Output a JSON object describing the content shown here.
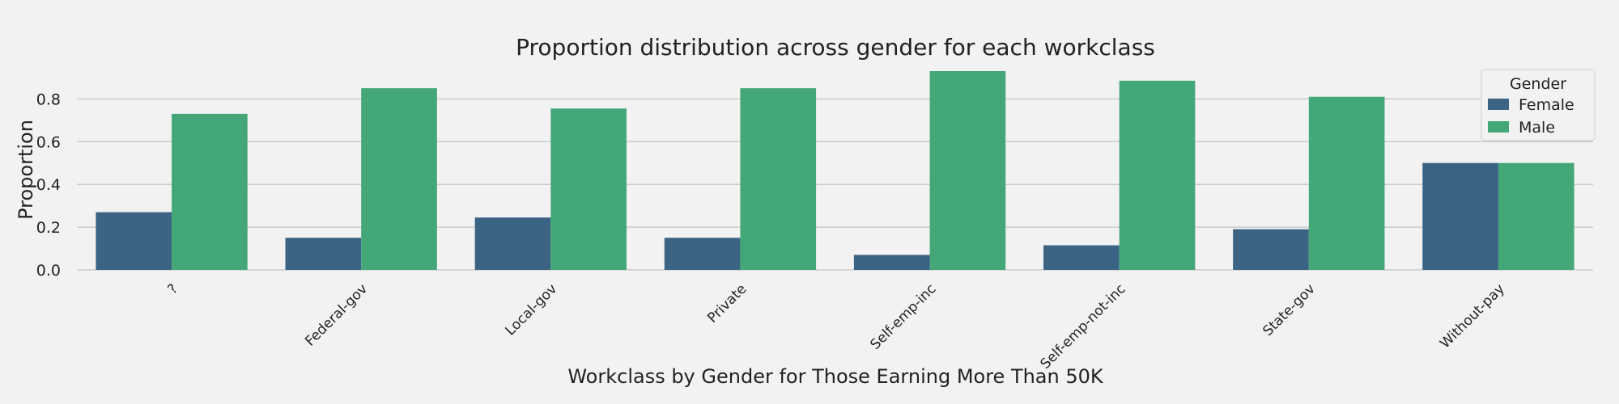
{
  "chart_data": {
    "type": "bar",
    "title": "Proportion distribution across gender for each workclass",
    "xlabel": "Workclass by Gender for Those Earning More Than 50K",
    "ylabel": "Proportion",
    "categories": [
      "?",
      "Federal-gov",
      "Local-gov",
      "Private",
      "Self-emp-inc",
      "Self-emp-not-inc",
      "State-gov",
      "Without-pay"
    ],
    "series": [
      {
        "name": "Female",
        "color": "#3b6384",
        "values": [
          0.27,
          0.15,
          0.245,
          0.15,
          0.07,
          0.115,
          0.19,
          0.5
        ]
      },
      {
        "name": "Male",
        "color": "#44a778",
        "values": [
          0.73,
          0.85,
          0.755,
          0.85,
          0.93,
          0.885,
          0.81,
          0.5
        ]
      }
    ],
    "yticks": [
      "0.0",
      "0.2",
      "0.4",
      "0.6",
      "0.8"
    ],
    "ylim": [
      0,
      0.93
    ],
    "grid": true,
    "legend": {
      "title": "Gender",
      "position": "top-right"
    }
  }
}
